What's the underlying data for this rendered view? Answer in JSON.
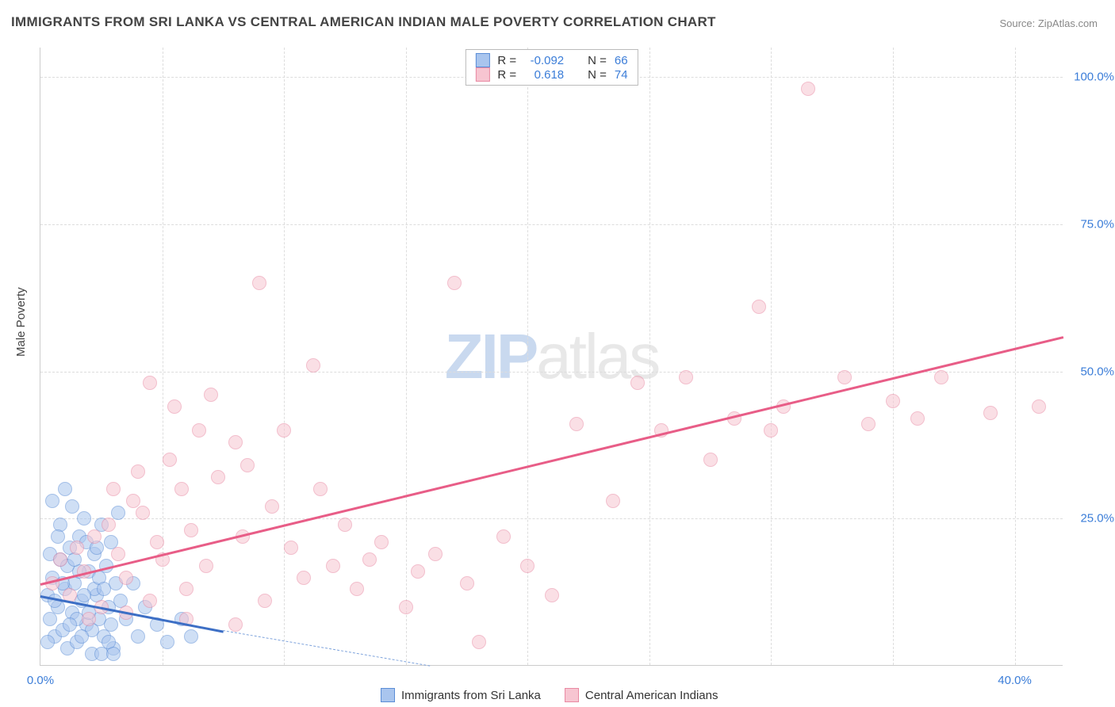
{
  "title": "IMMIGRANTS FROM SRI LANKA VS CENTRAL AMERICAN INDIAN MALE POVERTY CORRELATION CHART",
  "source": "Source: ZipAtlas.com",
  "ylabel": "Male Poverty",
  "watermark_a": "ZIP",
  "watermark_b": "atlas",
  "chart": {
    "type": "scatter",
    "background_color": "#ffffff",
    "grid_color": "#dddddd",
    "axis_color": "#cccccc",
    "tick_color": "#3b7dd8",
    "label_color": "#444444",
    "title_color": "#444444",
    "title_fontsize": 17,
    "label_fontsize": 15,
    "tick_fontsize": 15,
    "xlim": [
      0,
      42
    ],
    "ylim": [
      0,
      105
    ],
    "xticks": [
      0,
      5,
      10,
      15,
      20,
      25,
      30,
      35,
      40
    ],
    "xtick_labels_shown": {
      "0": "0.0%",
      "40": "40.0%"
    },
    "yticks": [
      25,
      50,
      75,
      100
    ],
    "ytick_labels": {
      "25": "25.0%",
      "50": "50.0%",
      "75": "75.0%",
      "100": "100.0%"
    },
    "point_radius": 9,
    "point_opacity": 0.55,
    "series": [
      {
        "name": "Immigrants from Sri Lanka",
        "fill_color": "#a9c5ee",
        "stroke_color": "#5b8dd6",
        "R": "-0.092",
        "N": "66",
        "trendline": {
          "x1": 0,
          "y1": 12,
          "x2": 7.5,
          "y2": 6,
          "color": "#3d6fc5",
          "width": 2.5
        },
        "trendline_dash": {
          "x1": 7.5,
          "y1": 6,
          "x2": 16,
          "y2": 0,
          "color": "#7ea3dc"
        },
        "points": [
          [
            0.3,
            12
          ],
          [
            0.4,
            8
          ],
          [
            0.5,
            15
          ],
          [
            0.6,
            5
          ],
          [
            0.7,
            10
          ],
          [
            0.8,
            18
          ],
          [
            0.9,
            6
          ],
          [
            1.0,
            13
          ],
          [
            1.1,
            3
          ],
          [
            1.2,
            20
          ],
          [
            1.3,
            9
          ],
          [
            1.4,
            14
          ],
          [
            1.5,
            4
          ],
          [
            1.6,
            22
          ],
          [
            1.7,
            11
          ],
          [
            1.8,
            25
          ],
          [
            1.9,
            7
          ],
          [
            2.0,
            16
          ],
          [
            2.1,
            2
          ],
          [
            2.2,
            19
          ],
          [
            2.3,
            12
          ],
          [
            2.4,
            8
          ],
          [
            2.5,
            24
          ],
          [
            2.6,
            5
          ],
          [
            2.7,
            17
          ],
          [
            2.8,
            10
          ],
          [
            2.9,
            21
          ],
          [
            3.0,
            3
          ],
          [
            3.1,
            14
          ],
          [
            3.2,
            26
          ],
          [
            0.5,
            28
          ],
          [
            0.8,
            24
          ],
          [
            1.0,
            30
          ],
          [
            1.3,
            27
          ],
          [
            1.6,
            16
          ],
          [
            1.9,
            21
          ],
          [
            2.2,
            13
          ],
          [
            0.4,
            19
          ],
          [
            0.7,
            22
          ],
          [
            1.1,
            17
          ],
          [
            1.5,
            8
          ],
          [
            1.8,
            12
          ],
          [
            2.1,
            6
          ],
          [
            2.4,
            15
          ],
          [
            2.8,
            4
          ],
          [
            0.6,
            11
          ],
          [
            0.9,
            14
          ],
          [
            1.2,
            7
          ],
          [
            1.4,
            18
          ],
          [
            1.7,
            5
          ],
          [
            2.0,
            9
          ],
          [
            2.3,
            20
          ],
          [
            2.6,
            13
          ],
          [
            2.9,
            7
          ],
          [
            3.3,
            11
          ],
          [
            3.5,
            8
          ],
          [
            3.8,
            14
          ],
          [
            4.0,
            5
          ],
          [
            4.3,
            10
          ],
          [
            4.8,
            7
          ],
          [
            5.2,
            4
          ],
          [
            5.8,
            8
          ],
          [
            6.2,
            5
          ],
          [
            2.5,
            2
          ],
          [
            3.0,
            2
          ],
          [
            0.3,
            4
          ]
        ]
      },
      {
        "name": "Central American Indians",
        "fill_color": "#f7c5d1",
        "stroke_color": "#e98aa3",
        "R": "0.618",
        "N": "74",
        "trendline": {
          "x1": 0,
          "y1": 14,
          "x2": 42,
          "y2": 56,
          "color": "#e85d87",
          "width": 2.5
        },
        "points": [
          [
            0.5,
            14
          ],
          [
            0.8,
            18
          ],
          [
            1.2,
            12
          ],
          [
            1.5,
            20
          ],
          [
            1.8,
            16
          ],
          [
            2.2,
            22
          ],
          [
            2.5,
            10
          ],
          [
            2.8,
            24
          ],
          [
            3.0,
            30
          ],
          [
            3.2,
            19
          ],
          [
            3.5,
            15
          ],
          [
            3.8,
            28
          ],
          [
            4.0,
            33
          ],
          [
            4.2,
            26
          ],
          [
            4.5,
            48
          ],
          [
            4.8,
            21
          ],
          [
            5.0,
            18
          ],
          [
            5.3,
            35
          ],
          [
            5.5,
            44
          ],
          [
            5.8,
            30
          ],
          [
            6.0,
            13
          ],
          [
            6.2,
            23
          ],
          [
            6.5,
            40
          ],
          [
            6.8,
            17
          ],
          [
            7.0,
            46
          ],
          [
            7.3,
            32
          ],
          [
            8.0,
            38
          ],
          [
            8.3,
            22
          ],
          [
            8.5,
            34
          ],
          [
            9.0,
            65
          ],
          [
            9.2,
            11
          ],
          [
            9.5,
            27
          ],
          [
            10.0,
            40
          ],
          [
            10.3,
            20
          ],
          [
            10.8,
            15
          ],
          [
            11.2,
            51
          ],
          [
            11.5,
            30
          ],
          [
            12.0,
            17
          ],
          [
            12.5,
            24
          ],
          [
            13.0,
            13
          ],
          [
            13.5,
            18
          ],
          [
            14.0,
            21
          ],
          [
            15.0,
            10
          ],
          [
            15.5,
            16
          ],
          [
            16.2,
            19
          ],
          [
            17.0,
            65
          ],
          [
            17.5,
            14
          ],
          [
            18.0,
            4
          ],
          [
            19.0,
            22
          ],
          [
            20.0,
            17
          ],
          [
            21.0,
            12
          ],
          [
            22.0,
            41
          ],
          [
            23.5,
            28
          ],
          [
            24.5,
            48
          ],
          [
            25.5,
            40
          ],
          [
            26.5,
            49
          ],
          [
            27.5,
            35
          ],
          [
            28.5,
            42
          ],
          [
            29.5,
            61
          ],
          [
            30.0,
            40
          ],
          [
            30.5,
            44
          ],
          [
            31.5,
            98
          ],
          [
            33.0,
            49
          ],
          [
            34.0,
            41
          ],
          [
            35.0,
            45
          ],
          [
            36.0,
            42
          ],
          [
            37.0,
            49
          ],
          [
            39.0,
            43
          ],
          [
            41.0,
            44
          ],
          [
            2.0,
            8
          ],
          [
            3.5,
            9
          ],
          [
            4.5,
            11
          ],
          [
            6.0,
            8
          ],
          [
            8.0,
            7
          ]
        ]
      }
    ],
    "legend_top": {
      "border_color": "#bbbbbb",
      "rows": [
        {
          "swatch_fill": "#a9c5ee",
          "swatch_stroke": "#5b8dd6",
          "R_label": "R =",
          "R_val": "-0.092",
          "N_label": "N =",
          "N_val": "66"
        },
        {
          "swatch_fill": "#f7c5d1",
          "swatch_stroke": "#e98aa3",
          "R_label": "R =",
          "R_val": "0.618",
          "N_label": "N =",
          "N_val": "74"
        }
      ]
    },
    "legend_bottom": [
      {
        "swatch_fill": "#a9c5ee",
        "swatch_stroke": "#5b8dd6",
        "label": "Immigrants from Sri Lanka"
      },
      {
        "swatch_fill": "#f7c5d1",
        "swatch_stroke": "#e98aa3",
        "label": "Central American Indians"
      }
    ]
  }
}
